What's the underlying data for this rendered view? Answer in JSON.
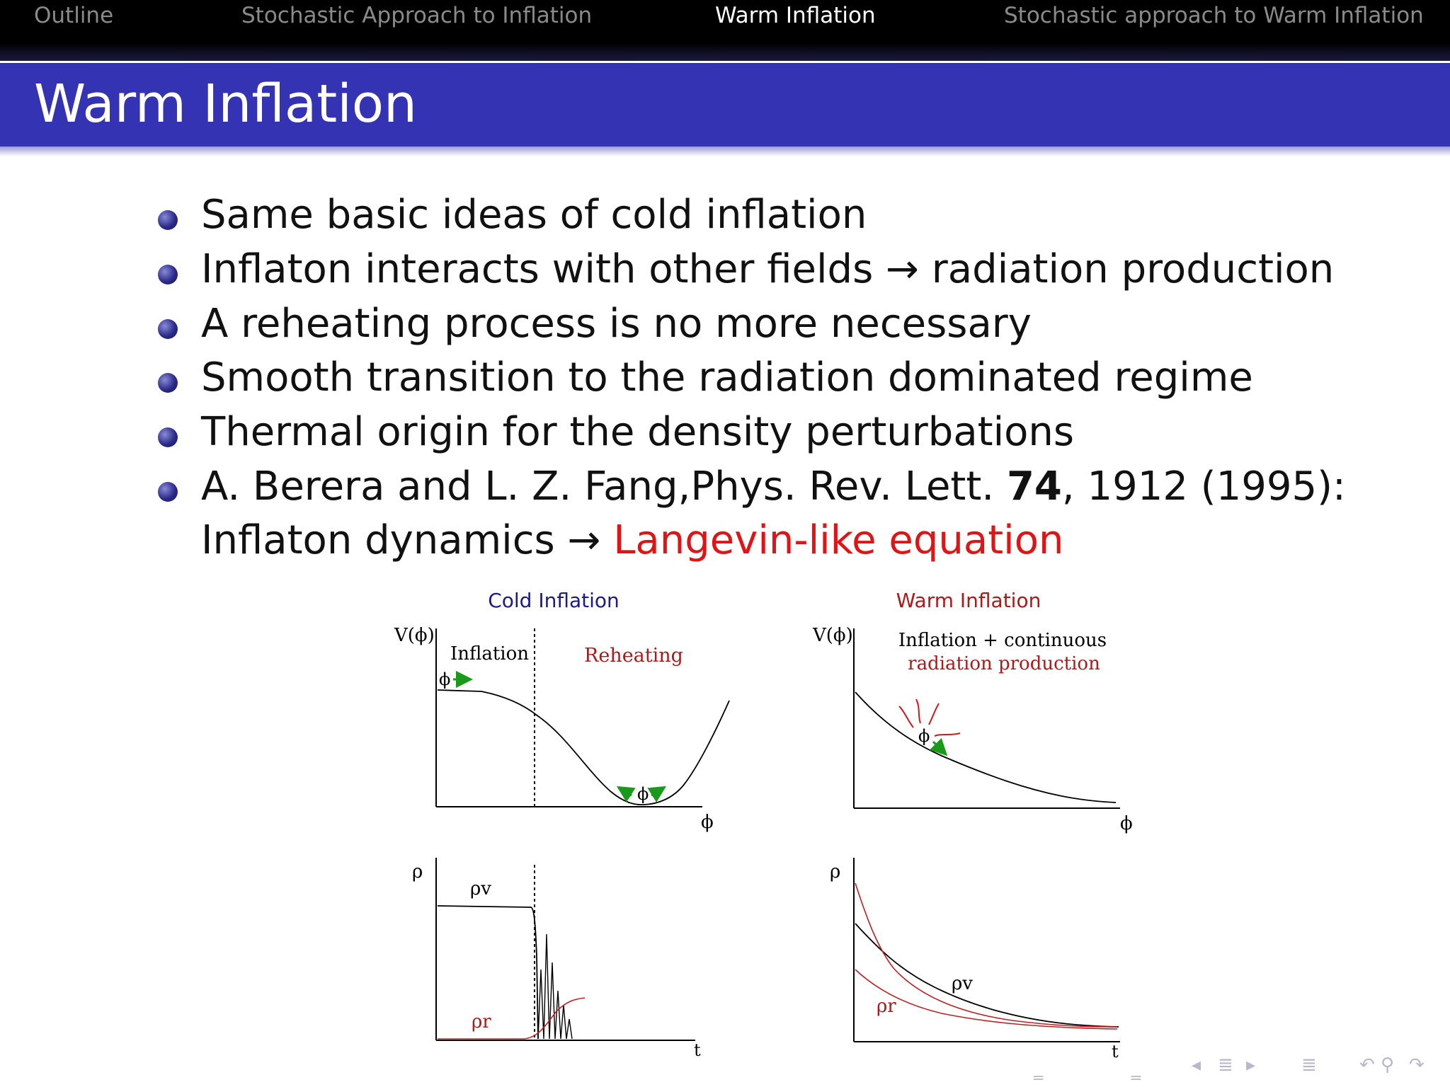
{
  "nav": {
    "items": [
      "Outline",
      "Stochastic Approach to Inflation",
      "Warm Inflation",
      "Stochastic approach to Warm Inflation"
    ],
    "active_index": 2
  },
  "frame": {
    "title": "Warm Inflation"
  },
  "bullets": [
    "Same basic ideas of cold inflation",
    "Inflaton interacts with other fields → radiation production",
    "A reheating process is no more necessary",
    "Smooth transition to the radiation dominated regime",
    "Thermal origin for the density perturbations"
  ],
  "reference": {
    "authors": "A. Berera and L. Z. Fang,Phys. Rev. Lett. ",
    "volume": "74",
    "pages_year": ", 1912 (1995):",
    "line2_prefix": "Inflaton dynamics → ",
    "line2_highlight": "Langevin-like equation"
  },
  "figure": {
    "cold": {
      "title": "Cold Inflation",
      "ylabel": "V(ϕ)",
      "region1": "Inflation",
      "region2": "Reheating",
      "field": "ϕ",
      "xlabel": "ϕ",
      "rho_axis": "ρ",
      "rho_v": "ρv",
      "rho_r": "ρr",
      "t_axis": "t"
    },
    "warm": {
      "title": "Warm Inflation",
      "ylabel": "V(ϕ)",
      "caption1": "Inflation + continuous",
      "caption2": "radiation production",
      "field": "ϕ",
      "xlabel": "ϕ",
      "rho_axis": "ρ",
      "rho_v": "ρv",
      "rho_r": "ρr",
      "t_axis": "t"
    }
  },
  "colors": {
    "nav_bg": "#000000",
    "title_bg": "#3333b3",
    "highlight": "#e01414",
    "cold_title": "#1a1a8a",
    "warm_title": "#b01818",
    "arrow_green": "#1a9a1a"
  }
}
